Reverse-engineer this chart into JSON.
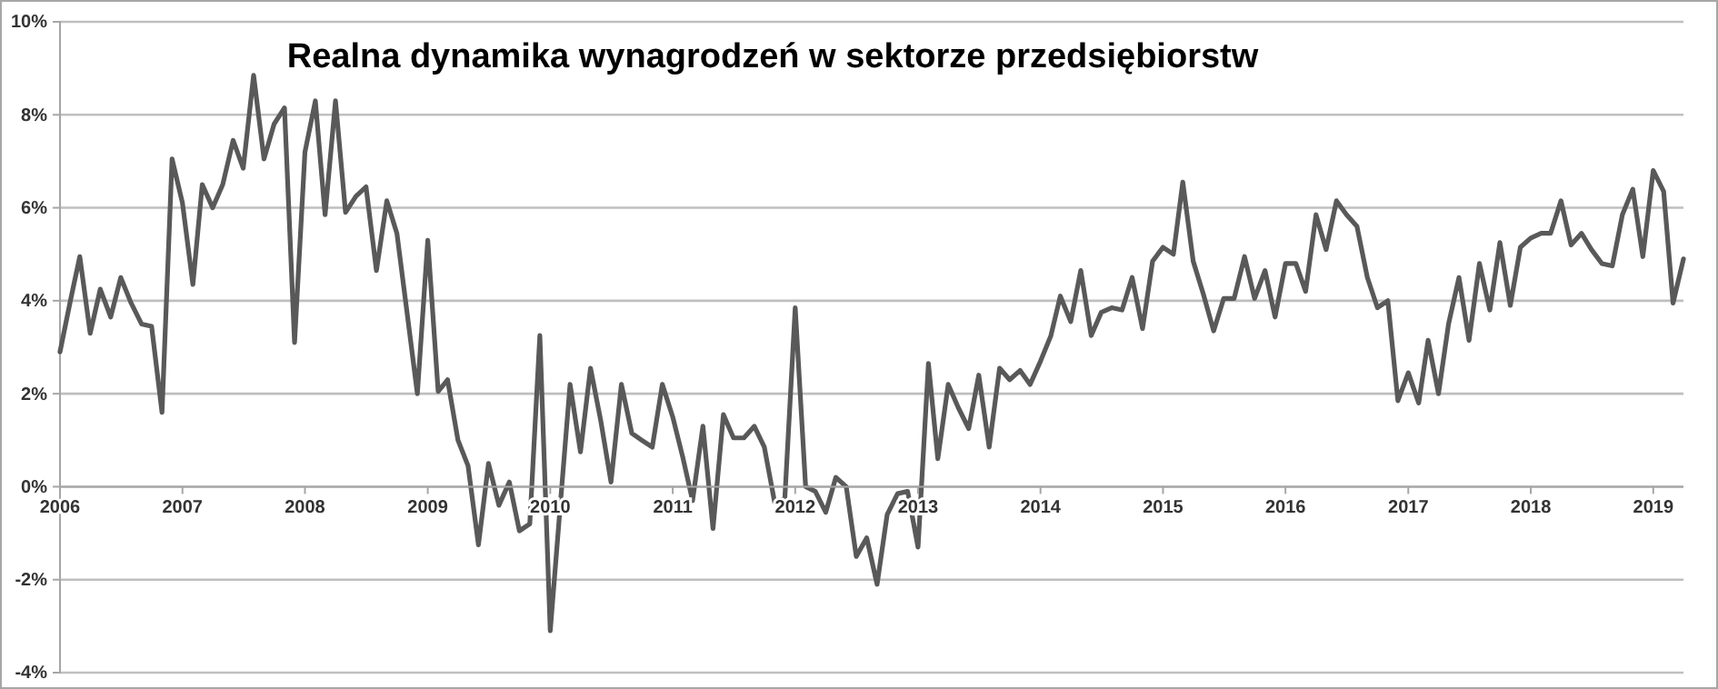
{
  "chart_data": {
    "type": "line",
    "title": "Realna dynamika wynagrodzeń w sektorze przedsiębiorstw",
    "x": [
      "2006-01",
      "2006-02",
      "2006-03",
      "2006-04",
      "2006-05",
      "2006-06",
      "2006-07",
      "2006-08",
      "2006-09",
      "2006-10",
      "2006-11",
      "2006-12",
      "2007-01",
      "2007-02",
      "2007-03",
      "2007-04",
      "2007-05",
      "2007-06",
      "2007-07",
      "2007-08",
      "2007-09",
      "2007-10",
      "2007-11",
      "2007-12",
      "2008-01",
      "2008-02",
      "2008-03",
      "2008-04",
      "2008-05",
      "2008-06",
      "2008-07",
      "2008-08",
      "2008-09",
      "2008-10",
      "2008-11",
      "2008-12",
      "2009-01",
      "2009-02",
      "2009-03",
      "2009-04",
      "2009-05",
      "2009-06",
      "2009-07",
      "2009-08",
      "2009-09",
      "2009-10",
      "2009-11",
      "2009-12",
      "2010-01",
      "2010-02",
      "2010-03",
      "2010-04",
      "2010-05",
      "2010-06",
      "2010-07",
      "2010-08",
      "2010-09",
      "2010-10",
      "2010-11",
      "2010-12",
      "2011-01",
      "2011-02",
      "2011-03",
      "2011-04",
      "2011-05",
      "2011-06",
      "2011-07",
      "2011-08",
      "2011-09",
      "2011-10",
      "2011-11",
      "2011-12",
      "2012-01",
      "2012-02",
      "2012-03",
      "2012-04",
      "2012-05",
      "2012-06",
      "2012-07",
      "2012-08",
      "2012-09",
      "2012-10",
      "2012-11",
      "2012-12",
      "2013-01",
      "2013-02",
      "2013-03",
      "2013-04",
      "2013-05",
      "2013-06",
      "2013-07",
      "2013-08",
      "2013-09",
      "2013-10",
      "2013-11",
      "2013-12",
      "2014-01",
      "2014-02",
      "2014-03",
      "2014-04",
      "2014-05",
      "2014-06",
      "2014-07",
      "2014-08",
      "2014-09",
      "2014-10",
      "2014-11",
      "2014-12",
      "2015-01",
      "2015-02",
      "2015-03",
      "2015-04",
      "2015-05",
      "2015-06",
      "2015-07",
      "2015-08",
      "2015-09",
      "2015-10",
      "2015-11",
      "2015-12",
      "2016-01",
      "2016-02",
      "2016-03",
      "2016-04",
      "2016-05",
      "2016-06",
      "2016-07",
      "2016-08",
      "2016-09",
      "2016-10",
      "2016-11",
      "2016-12",
      "2017-01",
      "2017-02",
      "2017-03",
      "2017-04",
      "2017-05",
      "2017-06",
      "2017-07",
      "2017-08",
      "2017-09",
      "2017-10",
      "2017-11",
      "2017-12",
      "2018-01",
      "2018-02",
      "2018-03",
      "2018-04",
      "2018-05",
      "2018-06",
      "2018-07",
      "2018-08",
      "2018-09",
      "2018-10",
      "2018-11",
      "2018-12",
      "2019-01",
      "2019-02",
      "2019-03",
      "2019-04"
    ],
    "series": [
      {
        "color": "#595959",
        "values": [
          2.9,
          4.0,
          4.95,
          3.3,
          4.25,
          3.65,
          4.5,
          3.95,
          3.5,
          3.45,
          1.6,
          7.05,
          6.1,
          4.35,
          6.5,
          6.0,
          6.5,
          7.45,
          6.85,
          8.85,
          7.05,
          7.8,
          8.15,
          3.1,
          7.2,
          8.3,
          5.85,
          8.3,
          5.9,
          6.25,
          6.45,
          4.65,
          6.15,
          5.45,
          3.7,
          2.0,
          5.3,
          2.05,
          2.3,
          1.0,
          0.45,
          -1.25,
          0.5,
          -0.4,
          0.1,
          -0.95,
          -0.8,
          3.25,
          -3.1,
          -0.3,
          2.2,
          0.75,
          2.55,
          1.4,
          0.1,
          2.2,
          1.15,
          1.0,
          0.85,
          2.2,
          1.5,
          0.6,
          -0.3,
          1.3,
          -0.9,
          1.55,
          1.05,
          1.05,
          1.3,
          0.85,
          -0.35,
          -0.25,
          3.85,
          0.0,
          -0.1,
          -0.55,
          0.2,
          0.0,
          -1.5,
          -1.1,
          -2.1,
          -0.6,
          -0.15,
          -0.1,
          -1.3,
          2.65,
          0.6,
          2.2,
          1.7,
          1.25,
          2.4,
          0.85,
          2.55,
          2.3,
          2.5,
          2.2,
          2.7,
          3.25,
          4.1,
          3.55,
          4.65,
          3.25,
          3.75,
          3.85,
          3.8,
          4.5,
          3.4,
          4.85,
          5.15,
          5.0,
          6.55,
          4.85,
          4.15,
          3.35,
          4.05,
          4.05,
          4.95,
          4.05,
          4.65,
          3.65,
          4.8,
          4.8,
          4.2,
          5.85,
          5.1,
          6.15,
          5.85,
          5.6,
          4.5,
          3.85,
          4.0,
          1.85,
          2.45,
          1.8,
          3.15,
          2.0,
          3.5,
          4.5,
          3.15,
          4.8,
          3.8,
          5.25,
          3.9,
          5.15,
          5.35,
          5.45,
          5.45,
          6.15,
          5.2,
          5.45,
          5.1,
          4.8,
          4.75,
          5.85,
          6.4,
          4.95,
          6.8,
          6.35,
          3.95,
          4.9
        ]
      }
    ],
    "xlim": [
      "2006-01",
      "2019-04"
    ],
    "xticks": [
      {
        "value": "2006-01",
        "label": "2006"
      },
      {
        "value": "2007-01",
        "label": "2007"
      },
      {
        "value": "2008-01",
        "label": "2008"
      },
      {
        "value": "2009-01",
        "label": "2009"
      },
      {
        "value": "2010-01",
        "label": "2010"
      },
      {
        "value": "2011-01",
        "label": "2011"
      },
      {
        "value": "2012-01",
        "label": "2012"
      },
      {
        "value": "2013-01",
        "label": "2013"
      },
      {
        "value": "2014-01",
        "label": "2014"
      },
      {
        "value": "2015-01",
        "label": "2015"
      },
      {
        "value": "2016-01",
        "label": "2016"
      },
      {
        "value": "2017-01",
        "label": "2017"
      },
      {
        "value": "2018-01",
        "label": "2018"
      },
      {
        "value": "2019-01",
        "label": "2019"
      }
    ],
    "ylim": [
      -4,
      10
    ],
    "yticks": [
      {
        "value": -4,
        "label": "-4%"
      },
      {
        "value": -2,
        "label": "-2%"
      },
      {
        "value": 0,
        "label": "0%"
      },
      {
        "value": 2,
        "label": "2%"
      },
      {
        "value": 4,
        "label": "4%"
      },
      {
        "value": 6,
        "label": "6%"
      },
      {
        "value": 8,
        "label": "8%"
      },
      {
        "value": 10,
        "label": "10%"
      }
    ],
    "grid": "y",
    "marker": "none",
    "line_style": "solid"
  }
}
